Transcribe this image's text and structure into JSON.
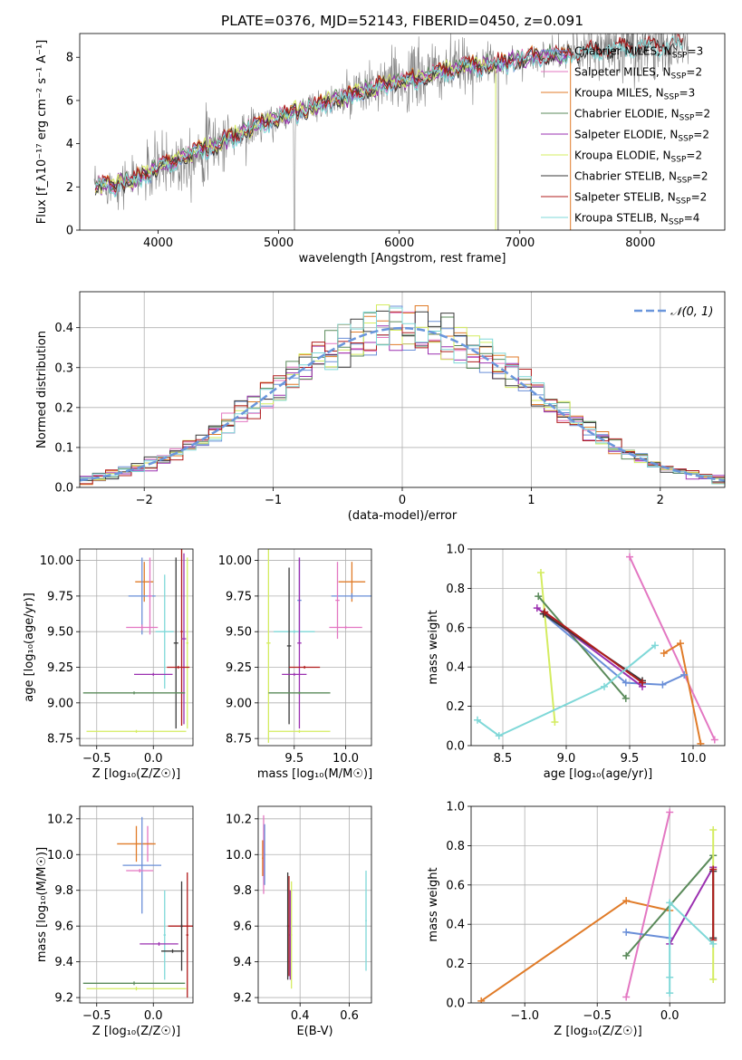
{
  "figure_title": "PLATE=0376, MJD=52143, FIBERID=0450, z=0.091",
  "colors": {
    "chabrier_miles": "#6a8fd8",
    "salpeter_miles": "#e377c2",
    "kroupa_miles": "#e07b28",
    "chabrier_elodie": "#5a8a5a",
    "salpeter_elodie": "#9b30b0",
    "kroupa_elodie": "#d4ec60",
    "chabrier_stelib": "#3a3a3a",
    "salpeter_stelib": "#b01c1c",
    "kroupa_stelib": "#7fd8d8",
    "data": "#808080",
    "normal": "#6a96dc"
  },
  "chart_data": [
    {
      "type": "line",
      "panel": "spectrum",
      "title": "PLATE=0376, MJD=52143, FIBERID=0450, z=0.091",
      "xlabel": "wavelength [Angstrom, rest frame]",
      "ylabel": "Flux [f_λ10⁻¹⁷ erg cm⁻² s⁻¹ A⁻¹]",
      "xlim": [
        3350,
        8700
      ],
      "ylim": [
        0,
        9.1
      ],
      "xticks": [
        "4000",
        "5000",
        "6000",
        "7000",
        "8000"
      ],
      "yticks": [
        "0",
        "2",
        "4",
        "6",
        "8"
      ],
      "legend_position": "right",
      "legend": [
        "Chabrier MILES, N_SSP=3",
        "Salpeter MILES, N_SSP=2",
        "Kroupa MILES, N_SSP=3",
        "Chabrier ELODIE, N_SSP=2",
        "Salpeter ELODIE, N_SSP=2",
        "Kroupa ELODIE, N_SSP=2",
        "Chabrier STELIB, N_SSP=2",
        "Salpeter STELIB, N_SSP=2",
        "Kroupa STELIB, N_SSP=4"
      ],
      "legend_rows": [
        {
          "label": "Chabrier MILES, N",
          "sub": "SSP",
          "suffix": "=3",
          "color_key": "chabrier_miles"
        },
        {
          "label": "Salpeter MILES, N",
          "sub": "SSP",
          "suffix": "=2",
          "color_key": "salpeter_miles"
        },
        {
          "label": "Kroupa MILES, N",
          "sub": "SSP",
          "suffix": "=3",
          "color_key": "kroupa_miles"
        },
        {
          "label": "Chabrier ELODIE, N",
          "sub": "SSP",
          "suffix": "=2",
          "color_key": "chabrier_elodie"
        },
        {
          "label": "Salpeter ELODIE, N",
          "sub": "SSP",
          "suffix": "=2",
          "color_key": "salpeter_elodie"
        },
        {
          "label": "Kroupa ELODIE, N",
          "sub": "SSP",
          "suffix": "=2",
          "color_key": "kroupa_elodie"
        },
        {
          "label": "Chabrier STELIB, N",
          "sub": "SSP",
          "suffix": "=2",
          "color_key": "chabrier_stelib"
        },
        {
          "label": "Salpeter STELIB, N",
          "sub": "SSP",
          "suffix": "=2",
          "color_key": "salpeter_stelib"
        },
        {
          "label": "Kroupa STELIB, N",
          "sub": "SSP",
          "suffix": "=4",
          "color_key": "kroupa_stelib"
        }
      ],
      "continuum_x": [
        3470,
        3600,
        3800,
        4000,
        4200,
        4400,
        4600,
        4800,
        5000,
        5200,
        5400,
        5600,
        5800,
        6000,
        6200,
        6400,
        6600,
        6800,
        7000,
        7200,
        7400,
        7600,
        7800,
        8000,
        8200,
        8400
      ],
      "continuum_y": [
        2.0,
        2.1,
        2.3,
        2.9,
        3.3,
        3.8,
        4.3,
        4.8,
        5.2,
        5.6,
        5.9,
        6.2,
        6.6,
        6.9,
        7.1,
        7.4,
        7.6,
        7.7,
        7.9,
        8.1,
        8.2,
        8.3,
        8.4,
        8.5,
        8.6,
        8.6
      ]
    },
    {
      "type": "histogram",
      "panel": "residuals",
      "xlabel": "(data-model)/error",
      "ylabel": "Normed distribution",
      "xlim": [
        -2.5,
        2.5
      ],
      "ylim": [
        0,
        0.49
      ],
      "xticks": [
        "−2",
        "−1",
        "0",
        "1",
        "2"
      ],
      "yticks": [
        "0.0",
        "0.1",
        "0.2",
        "0.3",
        "0.4"
      ],
      "bin_width": 0.1,
      "legend": [
        "𝒩(0, 1)"
      ],
      "legend_position": "upper right",
      "grid": true
    },
    {
      "type": "errorbar",
      "panel": "age-vs-metallicity",
      "xlabel": "Z [log₁₀(Z/Z☉)]",
      "ylabel": "age  [log₁₀(age/yr)]",
      "xlim": [
        -0.65,
        0.35
      ],
      "ylim": [
        8.7,
        10.08
      ],
      "xticks": [
        "−0.5",
        "0.0"
      ],
      "yticks": [
        "8.75",
        "9.00",
        "9.25",
        "9.50",
        "9.75",
        "10.00"
      ],
      "grid": true,
      "points": [
        {
          "x": -0.08,
          "y": 9.85,
          "xerr": 0.08,
          "yerr": 0.14,
          "color_key": "kroupa_miles"
        },
        {
          "x": -0.1,
          "y": 9.75,
          "xerr": 0.12,
          "yerr": 0.27,
          "color_key": "chabrier_miles"
        },
        {
          "x": -0.03,
          "y": 9.75,
          "xerr": 0.02,
          "yerr": 0.27,
          "color_key": "salpeter_miles"
        },
        {
          "x": -0.1,
          "y": 9.53,
          "xerr": 0.14,
          "yerr": 0.02,
          "color_key": "salpeter_miles"
        },
        {
          "x": 0.1,
          "y": 9.5,
          "xerr": 0.08,
          "yerr": 0.4,
          "color_key": "kroupa_stelib"
        },
        {
          "x": 0.0,
          "y": 9.2,
          "xerr": 0.17,
          "yerr": 0.01,
          "color_key": "salpeter_elodie"
        },
        {
          "x": 0.25,
          "y": 9.5,
          "xerr": 0.01,
          "yerr": 0.66,
          "color_key": "salpeter_stelib"
        },
        {
          "x": 0.2,
          "y": 9.42,
          "xerr": 0.02,
          "yerr": 0.6,
          "color_key": "chabrier_stelib"
        },
        {
          "x": 0.3,
          "y": 9.42,
          "xerr": 0.01,
          "yerr": 0.6,
          "color_key": "kroupa_elodie"
        },
        {
          "x": 0.27,
          "y": 9.45,
          "xerr": 0.02,
          "yerr": 0.6,
          "color_key": "salpeter_elodie"
        },
        {
          "x": 0.22,
          "y": 9.25,
          "xerr": 0.1,
          "yerr": 0.01,
          "color_key": "salpeter_stelib"
        },
        {
          "x": -0.17,
          "y": 9.07,
          "xerr": 0.45,
          "yerr": 0.01,
          "color_key": "chabrier_elodie"
        },
        {
          "x": -0.15,
          "y": 8.8,
          "xerr": 0.44,
          "yerr": 0.01,
          "color_key": "kroupa_elodie"
        }
      ]
    },
    {
      "type": "errorbar",
      "panel": "age-vs-mass",
      "xlabel": "mass [log₁₀(M/M☉)]",
      "ylabel": "",
      "xlim": [
        9.15,
        10.25
      ],
      "ylim": [
        8.7,
        10.08
      ],
      "xticks": [
        "9.5",
        "10.0"
      ],
      "yticks": [
        "8.75",
        "9.00",
        "9.25",
        "9.50",
        "9.75",
        "10.00"
      ],
      "grid": true,
      "points": [
        {
          "x": 10.06,
          "y": 9.85,
          "xerr": 0.13,
          "yerr": 0.14,
          "color_key": "kroupa_miles"
        },
        {
          "x": 10.06,
          "y": 9.75,
          "xerr": 0.2,
          "yerr": 0.02,
          "color_key": "chabrier_miles"
        },
        {
          "x": 9.92,
          "y": 9.72,
          "xerr": 0.02,
          "yerr": 0.27,
          "color_key": "salpeter_miles"
        },
        {
          "x": 10.0,
          "y": 9.53,
          "xerr": 0.16,
          "yerr": 0.01,
          "color_key": "salpeter_miles"
        },
        {
          "x": 9.55,
          "y": 9.72,
          "xerr": 0.02,
          "yerr": 0.3,
          "color_key": "chabrier_miles"
        },
        {
          "x": 9.5,
          "y": 9.5,
          "xerr": 0.2,
          "yerr": 0.01,
          "color_key": "kroupa_stelib"
        },
        {
          "x": 9.25,
          "y": 9.42,
          "xerr": 0.02,
          "yerr": 0.7,
          "color_key": "kroupa_elodie"
        },
        {
          "x": 9.45,
          "y": 9.4,
          "xerr": 0.02,
          "yerr": 0.55,
          "color_key": "chabrier_stelib"
        },
        {
          "x": 9.55,
          "y": 9.42,
          "xerr": 0.02,
          "yerr": 0.6,
          "color_key": "salpeter_elodie"
        },
        {
          "x": 9.6,
          "y": 9.25,
          "xerr": 0.15,
          "yerr": 0.01,
          "color_key": "salpeter_stelib"
        },
        {
          "x": 9.5,
          "y": 9.2,
          "xerr": 0.12,
          "yerr": 0.01,
          "color_key": "salpeter_elodie"
        },
        {
          "x": 9.55,
          "y": 9.07,
          "xerr": 0.3,
          "yerr": 0.01,
          "color_key": "chabrier_elodie"
        },
        {
          "x": 9.55,
          "y": 8.8,
          "xerr": 0.3,
          "yerr": 0.01,
          "color_key": "kroupa_elodie"
        }
      ]
    },
    {
      "type": "line",
      "panel": "mass-weight-vs-age",
      "xlabel": "age  [log₁₀(age/yr)]",
      "ylabel": "mass weight",
      "xlim": [
        8.25,
        10.25
      ],
      "ylim": [
        0,
        1
      ],
      "xticks": [
        "8.5",
        "9.0",
        "9.5",
        "10.0"
      ],
      "yticks": [
        "0.0",
        "0.2",
        "0.4",
        "0.6",
        "0.8",
        "1.0"
      ],
      "grid": true,
      "series": [
        {
          "color_key": "salpeter_miles",
          "x": [
            9.5,
            10.17
          ],
          "y": [
            0.96,
            0.03
          ]
        },
        {
          "color_key": "kroupa_miles",
          "x": [
            9.77,
            9.9,
            10.06
          ],
          "y": [
            0.47,
            0.52,
            0.01
          ]
        },
        {
          "color_key": "chabrier_miles",
          "x": [
            8.82,
            9.47,
            9.76,
            9.93
          ],
          "y": [
            0.67,
            0.32,
            0.31,
            0.36
          ]
        },
        {
          "color_key": "kroupa_elodie",
          "x": [
            8.8,
            8.91
          ],
          "y": [
            0.88,
            0.12
          ]
        },
        {
          "color_key": "chabrier_elodie",
          "x": [
            8.78,
            9.47
          ],
          "y": [
            0.76,
            0.24
          ]
        },
        {
          "color_key": "salpeter_elodie",
          "x": [
            8.77,
            9.6
          ],
          "y": [
            0.7,
            0.3
          ]
        },
        {
          "color_key": "chabrier_stelib",
          "x": [
            8.82,
            9.6
          ],
          "y": [
            0.67,
            0.33
          ]
        },
        {
          "color_key": "salpeter_stelib",
          "x": [
            8.83,
            9.6
          ],
          "y": [
            0.68,
            0.32
          ]
        },
        {
          "color_key": "kroupa_stelib",
          "x": [
            8.3,
            8.47,
            9.3,
            9.7
          ],
          "y": [
            0.13,
            0.05,
            0.3,
            0.51
          ]
        }
      ]
    },
    {
      "type": "errorbar",
      "panel": "mass-vs-metallicity",
      "xlabel": "Z [log₁₀(Z/Z☉)]",
      "ylabel": "mass [log₁₀(M/M☉)]",
      "xlim": [
        -0.65,
        0.35
      ],
      "ylim": [
        9.17,
        10.27
      ],
      "xticks": [
        "−0.5",
        "0.0"
      ],
      "yticks": [
        "9.2",
        "9.4",
        "9.6",
        "9.8",
        "10.0",
        "10.2"
      ],
      "grid": true,
      "points": [
        {
          "x": -0.05,
          "y": 10.06,
          "xerr": 0.04,
          "yerr": 0.1,
          "color_key": "salpeter_miles"
        },
        {
          "x": -0.15,
          "y": 10.06,
          "xerr": 0.17,
          "yerr": 0.1,
          "color_key": "kroupa_miles"
        },
        {
          "x": -0.1,
          "y": 9.94,
          "xerr": 0.17,
          "yerr": 0.27,
          "color_key": "chabrier_miles"
        },
        {
          "x": -0.12,
          "y": 9.91,
          "xerr": 0.12,
          "yerr": 0.01,
          "color_key": "salpeter_miles"
        },
        {
          "x": 0.1,
          "y": 9.55,
          "xerr": 0.01,
          "yerr": 0.25,
          "color_key": "kroupa_stelib"
        },
        {
          "x": 0.25,
          "y": 9.6,
          "xerr": 0.12,
          "yerr": 0.01,
          "color_key": "salpeter_stelib"
        },
        {
          "x": 0.3,
          "y": 9.55,
          "xerr": 0.01,
          "yerr": 0.35,
          "color_key": "salpeter_stelib"
        },
        {
          "x": 0.25,
          "y": 9.6,
          "xerr": 0.01,
          "yerr": 0.25,
          "color_key": "chabrier_stelib"
        },
        {
          "x": 0.05,
          "y": 9.5,
          "xerr": 0.17,
          "yerr": 0.01,
          "color_key": "salpeter_elodie"
        },
        {
          "x": 0.17,
          "y": 9.46,
          "xerr": 0.1,
          "yerr": 0.01,
          "color_key": "chabrier_stelib"
        },
        {
          "x": -0.17,
          "y": 9.28,
          "xerr": 0.45,
          "yerr": 0.01,
          "color_key": "chabrier_elodie"
        },
        {
          "x": -0.15,
          "y": 9.25,
          "xerr": 0.44,
          "yerr": 0.01,
          "color_key": "kroupa_elodie"
        }
      ]
    },
    {
      "type": "errorbar",
      "panel": "mass-vs-extinction",
      "xlabel": "E(B-V)",
      "ylabel": "",
      "xlim": [
        0.23,
        0.69
      ],
      "ylim": [
        9.17,
        10.27
      ],
      "xticks": [
        "0.4",
        "0.6"
      ],
      "yticks": [
        "9.2",
        "9.4",
        "9.6",
        "9.8",
        "10.0",
        "10.2"
      ],
      "grid": true,
      "points": [
        {
          "x": 0.252,
          "y": 10.0,
          "xerr": 0.003,
          "yerr": 0.22,
          "color_key": "salpeter_miles"
        },
        {
          "x": 0.256,
          "y": 10.0,
          "xerr": 0.003,
          "yerr": 0.17,
          "color_key": "chabrier_miles"
        },
        {
          "x": 0.248,
          "y": 9.98,
          "xerr": 0.003,
          "yerr": 0.1,
          "color_key": "kroupa_miles"
        },
        {
          "x": 0.35,
          "y": 9.6,
          "xerr": 0.003,
          "yerr": 0.3,
          "color_key": "chabrier_stelib"
        },
        {
          "x": 0.355,
          "y": 9.6,
          "xerr": 0.003,
          "yerr": 0.28,
          "color_key": "salpeter_stelib"
        },
        {
          "x": 0.36,
          "y": 9.55,
          "xerr": 0.003,
          "yerr": 0.25,
          "color_key": "salpeter_elodie"
        },
        {
          "x": 0.365,
          "y": 9.55,
          "xerr": 0.003,
          "yerr": 0.3,
          "color_key": "kroupa_elodie"
        },
        {
          "x": 0.668,
          "y": 9.63,
          "xerr": 0.003,
          "yerr": 0.28,
          "color_key": "kroupa_stelib"
        }
      ]
    },
    {
      "type": "line",
      "panel": "mass-weight-vs-metallicity",
      "xlabel": "Z [log₁₀(Z/Z☉)]",
      "ylabel": "mass weight",
      "xlim": [
        -1.37,
        0.38
      ],
      "ylim": [
        0,
        1
      ],
      "xticks": [
        "−1.0",
        "−0.5",
        "0.0"
      ],
      "yticks": [
        "0.0",
        "0.2",
        "0.4",
        "0.6",
        "0.8",
        "1.0"
      ],
      "grid": true,
      "series": [
        {
          "color_key": "kroupa_miles",
          "x": [
            -1.3,
            -0.3,
            0.0
          ],
          "y": [
            0.01,
            0.52,
            0.47
          ]
        },
        {
          "color_key": "salpeter_miles",
          "x": [
            -0.3,
            0.0
          ],
          "y": [
            0.03,
            0.97
          ]
        },
        {
          "color_key": "chabrier_miles",
          "x": [
            -0.3,
            0.0
          ],
          "y": [
            0.36,
            0.33
          ]
        },
        {
          "color_key": "chabrier_elodie",
          "x": [
            -0.3,
            0.3
          ],
          "y": [
            0.24,
            0.75
          ]
        },
        {
          "color_key": "salpeter_elodie",
          "x": [
            0.0,
            0.3
          ],
          "y": [
            0.3,
            0.69
          ]
        },
        {
          "color_key": "kroupa_elodie",
          "x": [
            0.3,
            0.3
          ],
          "y": [
            0.12,
            0.88
          ]
        },
        {
          "color_key": "chabrier_stelib",
          "x": [
            0.3,
            0.3
          ],
          "y": [
            0.33,
            0.67
          ]
        },
        {
          "color_key": "salpeter_stelib",
          "x": [
            0.3,
            0.3
          ],
          "y": [
            0.32,
            0.68
          ]
        },
        {
          "color_key": "kroupa_stelib",
          "x": [
            0.0,
            0.0,
            0.0,
            0.3
          ],
          "y": [
            0.05,
            0.13,
            0.51,
            0.3
          ]
        }
      ]
    }
  ]
}
